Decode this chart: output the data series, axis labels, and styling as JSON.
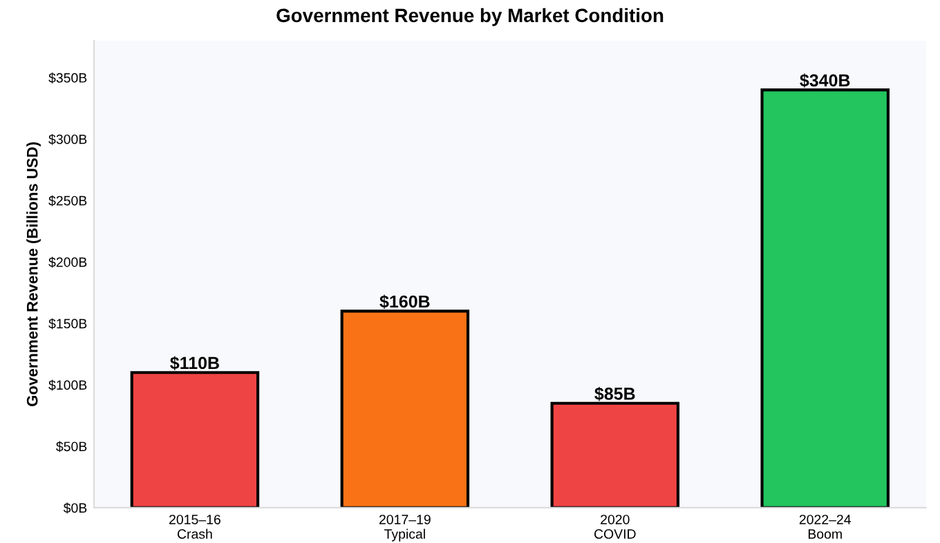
{
  "chart_data": {
    "type": "bar",
    "title": "Government Revenue by Market Condition",
    "ylabel": "Government Revenue (Billions USD)",
    "categories": [
      "2015–16\nCrash",
      "2017–19\nTypical",
      "2020\nCOVID",
      "2022–24\nBoom"
    ],
    "values": [
      110,
      160,
      85,
      340
    ],
    "colors": [
      "#ef4444",
      "#f97316",
      "#ef4444",
      "#22c55e"
    ],
    "value_labels": [
      "$110B",
      "$160B",
      "$85B",
      "$340B"
    ],
    "ylim": [
      0,
      380
    ],
    "yticks": [
      {
        "value": 0,
        "label": "$0B"
      },
      {
        "value": 50,
        "label": "$50B"
      },
      {
        "value": 100,
        "label": "$100B"
      },
      {
        "value": 150,
        "label": "$150B"
      },
      {
        "value": 200,
        "label": "$200B"
      },
      {
        "value": 250,
        "label": "$250B"
      },
      {
        "value": 300,
        "label": "$300B"
      },
      {
        "value": 350,
        "label": "$350B"
      }
    ],
    "grid": false
  }
}
